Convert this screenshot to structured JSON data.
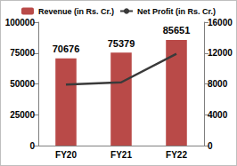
{
  "chart_data": {
    "type": "bar",
    "categories": [
      "FY20",
      "FY21",
      "FY22"
    ],
    "series": [
      {
        "name": "Revenue (in Rs. Cr.)",
        "type": "bar",
        "color": "#b94a48",
        "values": [
          70676,
          75379,
          85651
        ],
        "data_labels": true
      },
      {
        "name": "Net Profit (in Rs. Cr.)",
        "type": "line",
        "color": "#3a3a3a",
        "axis": "y2",
        "marker": "none",
        "line_style": "solid",
        "values": [
          7900,
          8200,
          11900
        ]
      }
    ],
    "ylim": [
      0,
      100000
    ],
    "yticks": [
      0,
      25000,
      50000,
      75000,
      100000
    ],
    "y2lim": [
      0,
      16000
    ],
    "y2ticks": [
      0,
      4000,
      8000,
      12000,
      16000
    ],
    "grid": false,
    "legend": "top"
  }
}
